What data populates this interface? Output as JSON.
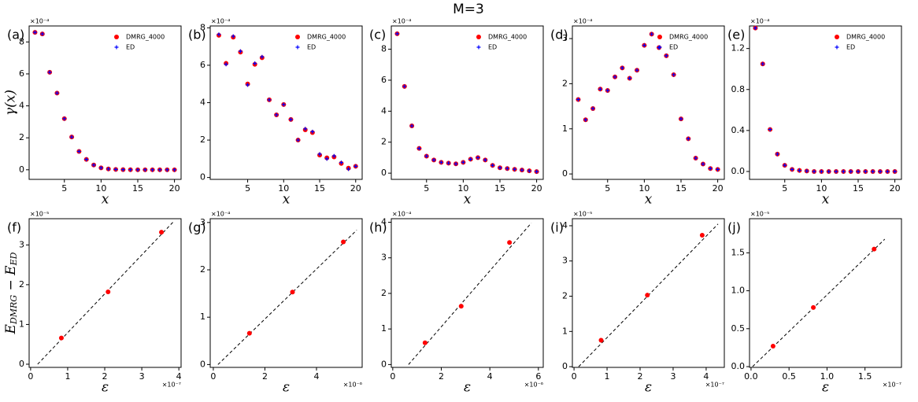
{
  "title": "M=3",
  "chart_data": [
    {
      "type": "scatter",
      "panel_label": "(a)",
      "xlabel": "x",
      "ylabel": "γ(x)",
      "y_offset": "×10⁻⁴",
      "x": [
        1,
        2,
        3,
        4,
        5,
        6,
        7,
        8,
        9,
        10,
        11,
        12,
        13,
        14,
        15,
        16,
        17,
        18,
        19,
        20
      ],
      "series": [
        {
          "name": "DMRG_4000",
          "color": "#ff0000",
          "marker": "dot",
          "values": [
            8.6,
            8.5,
            6.1,
            4.8,
            3.2,
            2.05,
            1.15,
            0.65,
            0.3,
            0.12,
            0.05,
            0.02,
            0.01,
            0.005,
            0,
            0,
            0,
            0,
            0,
            0
          ]
        },
        {
          "name": "ED",
          "color": "#0000ff",
          "marker": "plus",
          "values": [
            8.6,
            8.5,
            6.1,
            4.8,
            3.2,
            2.05,
            1.15,
            0.65,
            0.3,
            0.12,
            0.05,
            0.02,
            0.01,
            0.005,
            0,
            0,
            0,
            0,
            0,
            0
          ]
        }
      ],
      "xlim": [
        0.2,
        20.9
      ],
      "ylim": [
        -0.6,
        9.0
      ],
      "xticks": [
        5,
        10,
        15,
        20
      ],
      "yticks": [
        0,
        2,
        4,
        6,
        8
      ],
      "legend": "upper right"
    },
    {
      "type": "scatter",
      "panel_label": "(b)",
      "xlabel": "x",
      "y_offset": "×10⁻⁴",
      "x": [
        1,
        2,
        3,
        4,
        5,
        6,
        7,
        8,
        9,
        10,
        11,
        12,
        13,
        14,
        15,
        16,
        17,
        18,
        19,
        20
      ],
      "series": [
        {
          "name": "DMRG_4000",
          "color": "#ff0000",
          "marker": "dot",
          "values": [
            7.6,
            6.1,
            7.5,
            6.7,
            5.0,
            6.05,
            6.4,
            4.15,
            3.35,
            3.9,
            3.1,
            2.0,
            2.55,
            2.4,
            1.2,
            1.05,
            1.1,
            0.75,
            0.5,
            0.6
          ]
        },
        {
          "name": "ED",
          "color": "#0000ff",
          "marker": "plus",
          "values": [
            7.65,
            6.05,
            7.55,
            6.75,
            4.95,
            6.1,
            6.45,
            4.15,
            3.35,
            3.9,
            3.1,
            2.0,
            2.6,
            2.45,
            1.25,
            1.0,
            1.15,
            0.8,
            0.45,
            0.6
          ]
        }
      ],
      "xlim": [
        -0.2,
        20.9
      ],
      "ylim": [
        -0.1,
        8.1
      ],
      "xticks": [
        5,
        10,
        15,
        20
      ],
      "yticks": [
        0,
        2,
        4,
        6,
        8
      ],
      "legend": "upper right"
    },
    {
      "type": "scatter",
      "panel_label": "(c)",
      "xlabel": "x",
      "y_offset": "×10⁻⁴",
      "x": [
        1,
        2,
        3,
        4,
        5,
        6,
        7,
        8,
        9,
        10,
        11,
        12,
        13,
        14,
        15,
        16,
        17,
        18,
        19,
        20
      ],
      "series": [
        {
          "name": "DMRG_4000",
          "color": "#ff0000",
          "marker": "dot",
          "values": [
            9.0,
            5.6,
            3.05,
            1.6,
            1.1,
            0.85,
            0.7,
            0.65,
            0.6,
            0.7,
            0.9,
            1.0,
            0.85,
            0.5,
            0.35,
            0.3,
            0.25,
            0.2,
            0.15,
            0.1
          ]
        },
        {
          "name": "ED",
          "color": "#0000ff",
          "marker": "plus",
          "values": [
            9.0,
            5.6,
            3.05,
            1.6,
            1.1,
            0.85,
            0.7,
            0.65,
            0.6,
            0.7,
            0.9,
            1.0,
            0.85,
            0.5,
            0.35,
            0.3,
            0.25,
            0.2,
            0.15,
            0.1
          ]
        }
      ],
      "xlim": [
        0.2,
        20.9
      ],
      "ylim": [
        -0.4,
        9.5
      ],
      "xticks": [
        5,
        10,
        15,
        20
      ],
      "yticks": [
        0,
        2,
        4,
        6,
        8
      ],
      "legend": "upper right"
    },
    {
      "type": "scatter",
      "panel_label": "(d)",
      "xlabel": "x",
      "y_offset": "×10⁻⁴",
      "x": [
        1,
        2,
        3,
        4,
        5,
        6,
        7,
        8,
        9,
        10,
        11,
        12,
        13,
        14,
        15,
        16,
        17,
        18,
        19,
        20
      ],
      "series": [
        {
          "name": "DMRG_4000",
          "color": "#ff0000",
          "marker": "dot",
          "values": [
            1.65,
            1.2,
            1.45,
            1.88,
            1.85,
            2.15,
            2.35,
            2.12,
            2.3,
            2.85,
            3.1,
            2.8,
            2.62,
            2.2,
            1.22,
            0.78,
            0.35,
            0.22,
            0.12,
            0.1
          ]
        },
        {
          "name": "ED",
          "color": "#0000ff",
          "marker": "plus",
          "values": [
            1.65,
            1.2,
            1.45,
            1.88,
            1.85,
            2.15,
            2.35,
            2.12,
            2.3,
            2.85,
            3.1,
            2.8,
            2.62,
            2.2,
            1.22,
            0.78,
            0.35,
            0.22,
            0.12,
            0.1
          ]
        }
      ],
      "xlim": [
        0.2,
        20.9
      ],
      "ylim": [
        -0.12,
        3.28
      ],
      "xticks": [
        5,
        10,
        15,
        20
      ],
      "yticks": [
        0,
        1,
        2,
        3
      ],
      "legend": "upper right"
    },
    {
      "type": "scatter",
      "panel_label": "(e)",
      "xlabel": "x",
      "y_offset": "×10⁻⁴",
      "x": [
        1,
        2,
        3,
        4,
        5,
        6,
        7,
        8,
        9,
        10,
        11,
        12,
        13,
        14,
        15,
        16,
        17,
        18,
        19,
        20
      ],
      "series": [
        {
          "name": "DMRG_4000",
          "color": "#ff0000",
          "marker": "dot",
          "values": [
            1.4,
            1.05,
            0.41,
            0.17,
            0.06,
            0.02,
            0.01,
            0.005,
            0,
            0,
            0,
            0,
            0,
            0,
            0,
            0,
            0,
            0,
            0,
            0
          ]
        },
        {
          "name": "ED",
          "color": "#0000ff",
          "marker": "plus",
          "values": [
            1.4,
            1.05,
            0.41,
            0.17,
            0.06,
            0.02,
            0.01,
            0.005,
            0,
            0,
            0,
            0,
            0,
            0,
            0,
            0,
            0,
            0,
            0,
            0
          ]
        }
      ],
      "xlim": [
        0.2,
        20.9
      ],
      "ylim": [
        -0.077,
        1.42
      ],
      "xticks": [
        5,
        10,
        15,
        20
      ],
      "yticks": [
        {
          "value": 0,
          "label": "0.0"
        },
        {
          "value": 0.4,
          "label": "0.4"
        },
        {
          "value": 0.8,
          "label": "0.8"
        },
        {
          "value": 1.2,
          "label": "1.2"
        }
      ],
      "legend": "upper right"
    },
    {
      "type": "scatter",
      "panel_label": "(f)",
      "xlabel": "ε",
      "ylabel": [
        "E",
        "DMRG",
        " − E",
        "ED"
      ],
      "y_offset": "×10⁻⁵",
      "x_offset": "×10⁻⁷",
      "x": [
        0.83,
        2.09,
        3.53
      ],
      "values": [
        0.66,
        1.82,
        3.32
      ],
      "color": "#ff0000",
      "fit": {
        "x": [
          0.19,
          3.87
        ],
        "values": [
          0,
          3.6
        ],
        "color": "#000000"
      },
      "xlim": [
        -0.04,
        4.06
      ],
      "ylim": [
        -0.08,
        3.66
      ],
      "xticks": [
        0,
        1,
        2,
        3,
        4
      ],
      "yticks": [
        0,
        1,
        2,
        3
      ]
    },
    {
      "type": "scatter",
      "panel_label": "(g)",
      "xlabel": "ε",
      "y_offset": "×10⁻⁴",
      "x_offset": "×10⁻⁶",
      "x": [
        1.4,
        3.07,
        5.04
      ],
      "values": [
        0.66,
        1.53,
        2.59
      ],
      "color": "#ff0000",
      "fit": {
        "x": [
          0.18,
          5.56
        ],
        "values": [
          0,
          2.84
        ],
        "color": "#000000"
      },
      "xlim": [
        -0.12,
        5.77
      ],
      "ylim": [
        -0.06,
        3.08
      ],
      "xticks": [
        0,
        2,
        4
      ],
      "yticks": [
        0,
        1,
        2,
        3
      ]
    },
    {
      "type": "scatter",
      "panel_label": "(h)",
      "xlabel": "ε",
      "y_offset": "×10⁻⁴",
      "x_offset": "×10⁻⁶",
      "x": [
        1.33,
        2.82,
        4.81
      ],
      "values": [
        0.61,
        1.64,
        3.43
      ],
      "color": "#ff0000",
      "fit": {
        "x": [
          0.65,
          5.71
        ],
        "values": [
          0,
          3.98
        ],
        "color": "#000000"
      },
      "xlim": [
        -0.06,
        6.2
      ],
      "ylim": [
        -0.08,
        4.1
      ],
      "xticks": [
        0,
        2,
        4,
        6
      ],
      "yticks": [
        0,
        1,
        2,
        3,
        4
      ]
    },
    {
      "type": "scatter",
      "panel_label": "(i)",
      "xlabel": "ε",
      "y_offset": "×10⁻⁵",
      "x_offset": "×10⁻⁷",
      "x": [
        0.82,
        2.22,
        3.88
      ],
      "values": [
        0.75,
        2.03,
        3.73
      ],
      "color": "#ff0000",
      "fit": {
        "x": [
          0.14,
          4.36
        ],
        "values": [
          0,
          4.05
        ],
        "color": "#000000"
      },
      "xlim": [
        -0.05,
        4.55
      ],
      "ylim": [
        -0.02,
        4.2
      ],
      "xticks": [
        0,
        1,
        2,
        3,
        4
      ],
      "yticks": [
        0,
        1,
        2,
        3,
        4
      ]
    },
    {
      "type": "scatter",
      "panel_label": "(j)",
      "xlabel": "ε",
      "y_offset": "×10⁻⁵",
      "x_offset": "×10⁻⁷",
      "x": [
        0.29,
        0.82,
        1.62
      ],
      "values": [
        0.27,
        0.78,
        1.55
      ],
      "color": "#ff0000",
      "fit": {
        "x": [
          0.02,
          1.76
        ],
        "values": [
          0,
          1.68
        ],
        "color": "#000000"
      },
      "xlim": [
        -0.02,
        1.98
      ],
      "ylim": [
        -0.01,
        1.95
      ],
      "xticks": [
        {
          "value": 0,
          "label": "0.0"
        },
        {
          "value": 0.5,
          "label": "0.5"
        },
        {
          "value": 1,
          "label": "1.0"
        },
        {
          "value": 1.5,
          "label": "1.5"
        }
      ],
      "yticks": [
        {
          "value": 0,
          "label": "0.0"
        },
        {
          "value": 0.5,
          "label": "0.5"
        },
        {
          "value": 1,
          "label": "1.0"
        },
        {
          "value": 1.5,
          "label": "1.5"
        }
      ]
    }
  ]
}
